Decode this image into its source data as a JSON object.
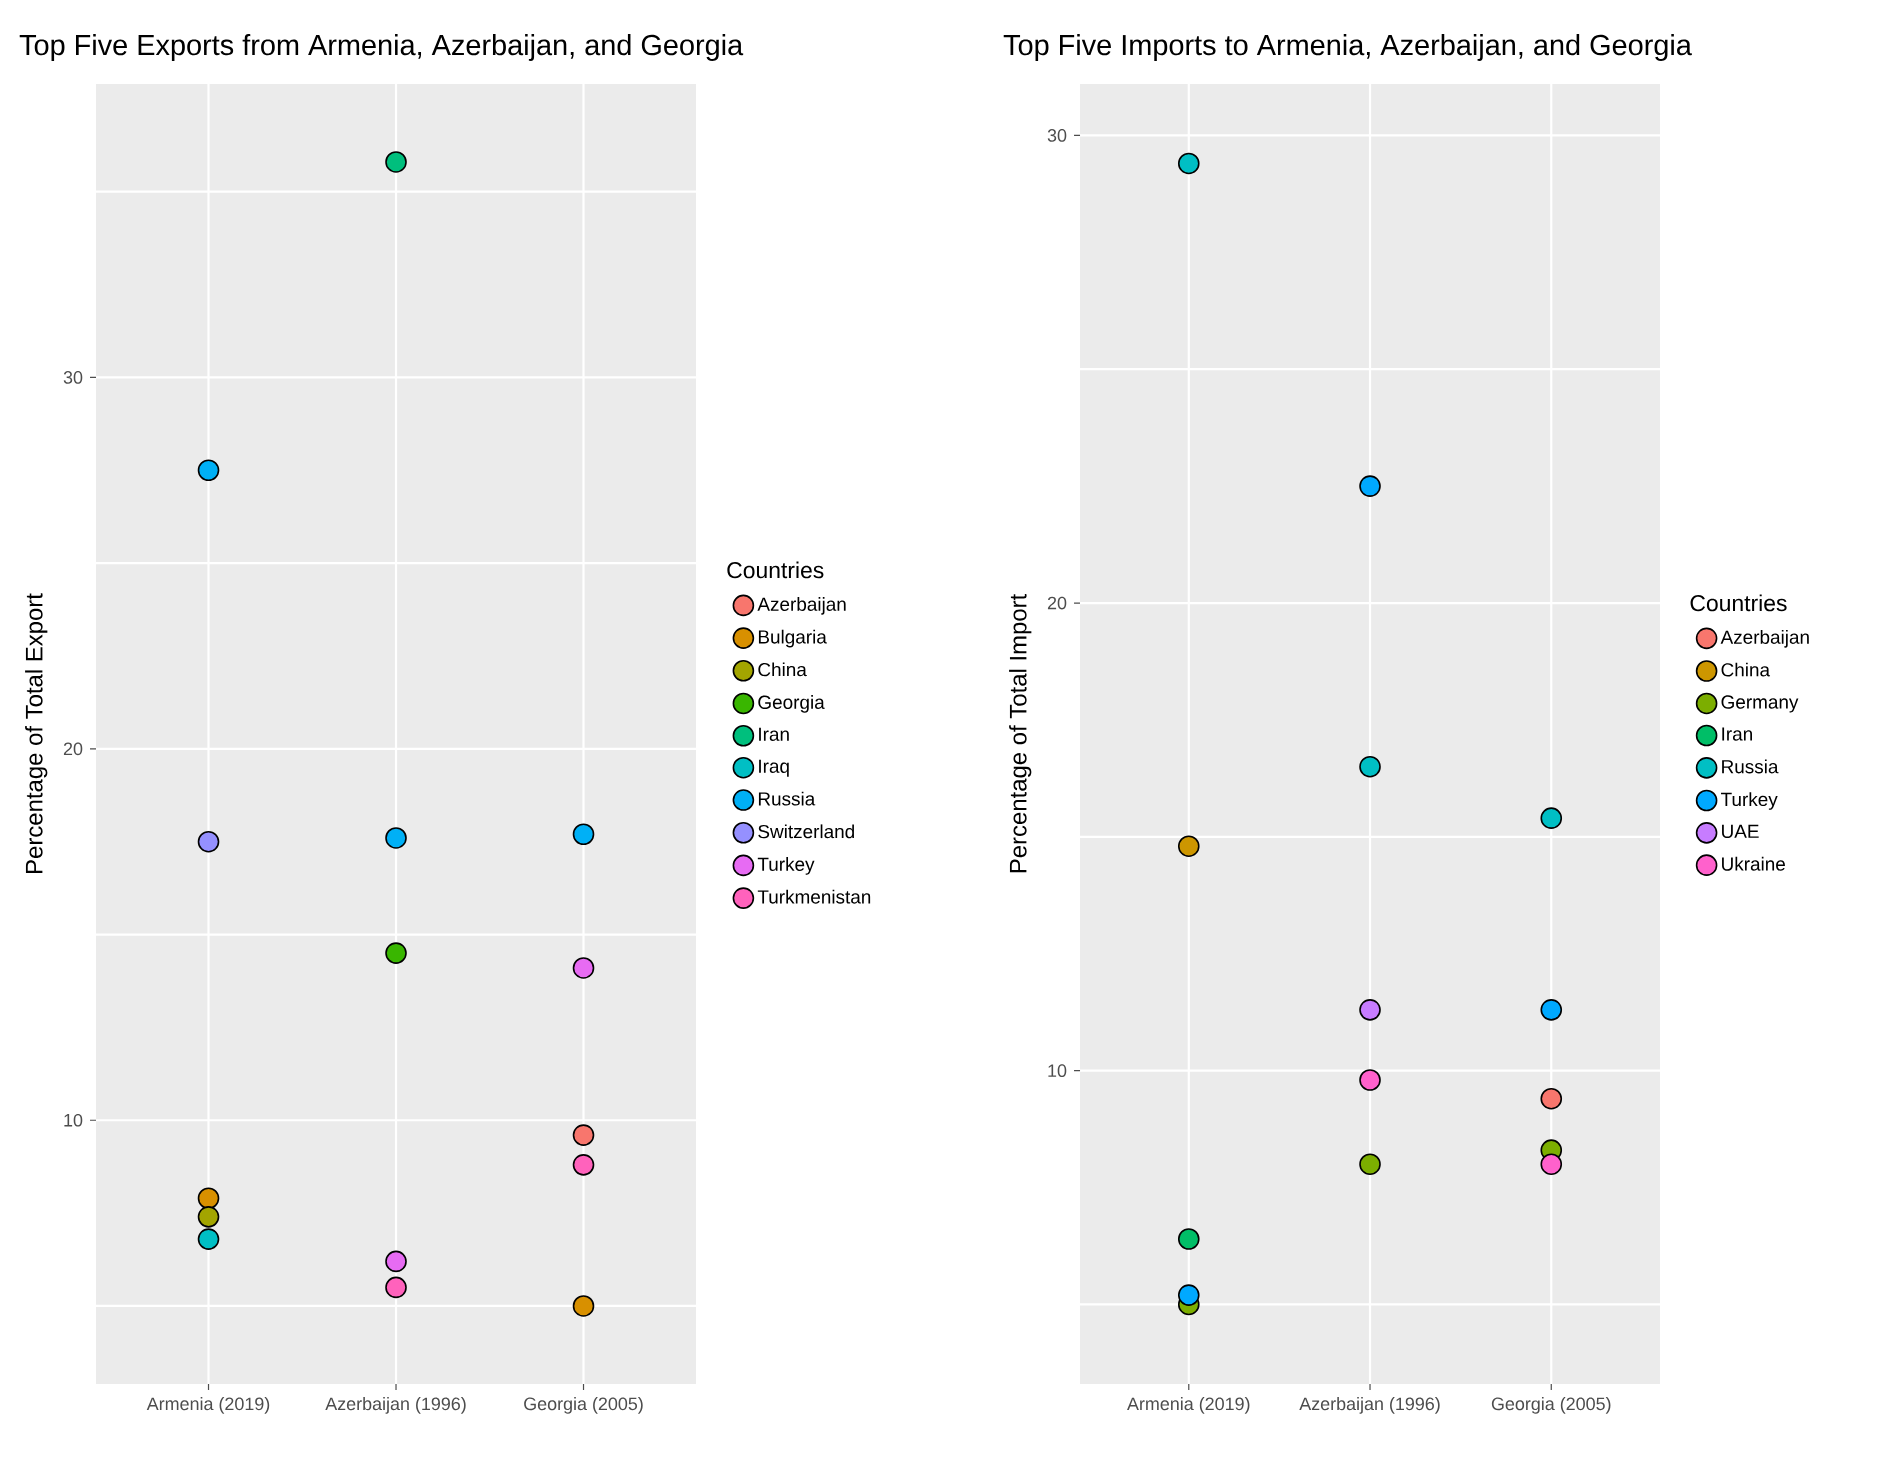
{
  "chart_data": [
    {
      "type": "scatter",
      "title": "Top Five Exports from Armenia, Azerbaijan, and Georgia",
      "ylabel": "Percentage of Total Export",
      "legend_title": "Countries",
      "legend": "right",
      "grid": true,
      "categories": [
        "Armenia (2019)",
        "Azerbaijan (1996)",
        "Georgia (2005)"
      ],
      "ylim": [
        2.9,
        37.9
      ],
      "yticks": [
        {
          "value": 5,
          "label": null
        },
        10,
        {
          "value": 15,
          "label": null
        },
        20,
        {
          "value": 25,
          "label": null
        },
        30,
        {
          "value": 35,
          "label": null
        }
      ],
      "series": [
        {
          "name": "Azerbaijan",
          "color": "#f8766d",
          "values": [
            null,
            null,
            9.6
          ]
        },
        {
          "name": "Bulgaria",
          "color": "#d89000",
          "values": [
            7.9,
            null,
            5.0
          ]
        },
        {
          "name": "China",
          "color": "#a3a500",
          "values": [
            7.4,
            null,
            null
          ]
        },
        {
          "name": "Georgia",
          "color": "#39b600",
          "values": [
            null,
            14.5,
            null
          ]
        },
        {
          "name": "Iran",
          "color": "#00bf7d",
          "values": [
            null,
            35.8,
            null
          ]
        },
        {
          "name": "Iraq",
          "color": "#00bfc4",
          "values": [
            6.8,
            null,
            null
          ]
        },
        {
          "name": "Russia",
          "color": "#00b0f6",
          "values": [
            27.5,
            17.6,
            17.7
          ]
        },
        {
          "name": "Switzerland",
          "color": "#9590ff",
          "values": [
            17.5,
            null,
            null
          ]
        },
        {
          "name": "Turkey",
          "color": "#e76bf3",
          "values": [
            null,
            6.2,
            14.1
          ]
        },
        {
          "name": "Turkmenistan",
          "color": "#ff62bc",
          "values": [
            null,
            5.5,
            8.8
          ]
        }
      ]
    },
    {
      "type": "scatter",
      "title": "Top Five Imports to Armenia, Azerbaijan, and Georgia",
      "ylabel": "Percentage of Total Import",
      "legend_title": "Countries",
      "legend": "right",
      "grid": true,
      "categories": [
        "Armenia (2019)",
        "Azerbaijan (1996)",
        "Georgia (2005)"
      ],
      "ylim": [
        3.3,
        31.1
      ],
      "yticks": [
        {
          "value": 5,
          "label": null
        },
        10,
        {
          "value": 15,
          "label": null
        },
        20,
        {
          "value": 25,
          "label": null
        },
        30
      ],
      "series": [
        {
          "name": "Azerbaijan",
          "color": "#f8766d",
          "values": [
            null,
            null,
            9.4
          ]
        },
        {
          "name": "China",
          "color": "#cd9600",
          "values": [
            14.8,
            null,
            null
          ]
        },
        {
          "name": "Germany",
          "color": "#7cae00",
          "values": [
            5.0,
            8.0,
            8.3
          ]
        },
        {
          "name": "Iran",
          "color": "#00be67",
          "values": [
            6.4,
            null,
            null
          ]
        },
        {
          "name": "Russia",
          "color": "#00bfc4",
          "values": [
            29.4,
            16.5,
            15.4
          ]
        },
        {
          "name": "Turkey",
          "color": "#00a9ff",
          "values": [
            5.2,
            22.5,
            11.3
          ]
        },
        {
          "name": "UAE",
          "color": "#c77cff",
          "values": [
            null,
            11.3,
            null
          ]
        },
        {
          "name": "Ukraine",
          "color": "#ff61cc",
          "values": [
            null,
            9.8,
            8.0
          ]
        }
      ]
    }
  ]
}
